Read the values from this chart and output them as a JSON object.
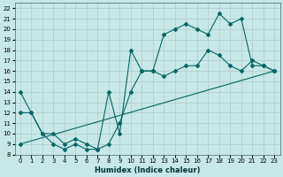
{
  "xlabel": "Humidex (Indice chaleur)",
  "xlim": [
    -0.5,
    23.5
  ],
  "ylim": [
    8,
    22.5
  ],
  "xticks": [
    0,
    1,
    2,
    3,
    4,
    5,
    6,
    7,
    8,
    9,
    10,
    11,
    12,
    13,
    14,
    15,
    16,
    17,
    18,
    19,
    20,
    21,
    22,
    23
  ],
  "yticks": [
    8,
    9,
    10,
    11,
    12,
    13,
    14,
    15,
    16,
    17,
    18,
    19,
    20,
    21,
    22
  ],
  "bg_color": "#c8e8e8",
  "grid_color": "#b0c8c8",
  "line_color": "#006666",
  "line1_x": [
    0,
    1,
    2,
    3,
    4,
    5,
    6,
    7,
    8,
    9,
    10,
    11,
    12,
    13,
    14,
    15,
    16,
    17,
    18,
    19,
    20,
    21,
    22,
    23
  ],
  "line1_y": [
    14,
    12,
    10,
    9,
    8.5,
    9,
    8.5,
    8.5,
    9,
    11,
    14,
    16,
    16,
    19.5,
    20,
    20.5,
    20,
    19.5,
    21.5,
    20.5,
    21,
    16.5,
    16.5,
    16
  ],
  "line2_x": [
    0,
    1,
    2,
    3,
    4,
    5,
    6,
    7,
    8,
    9,
    10,
    11,
    12,
    13,
    14,
    15,
    16,
    17,
    18,
    19,
    20,
    21,
    22,
    23
  ],
  "line2_y": [
    12,
    12,
    10,
    10,
    9,
    9.5,
    9,
    8.5,
    14,
    10,
    18,
    16,
    16,
    15.5,
    16,
    16.5,
    16.5,
    18,
    17.5,
    16.5,
    16,
    17,
    16.5,
    16
  ],
  "line3_x": [
    0,
    23
  ],
  "line3_y": [
    9,
    16
  ]
}
